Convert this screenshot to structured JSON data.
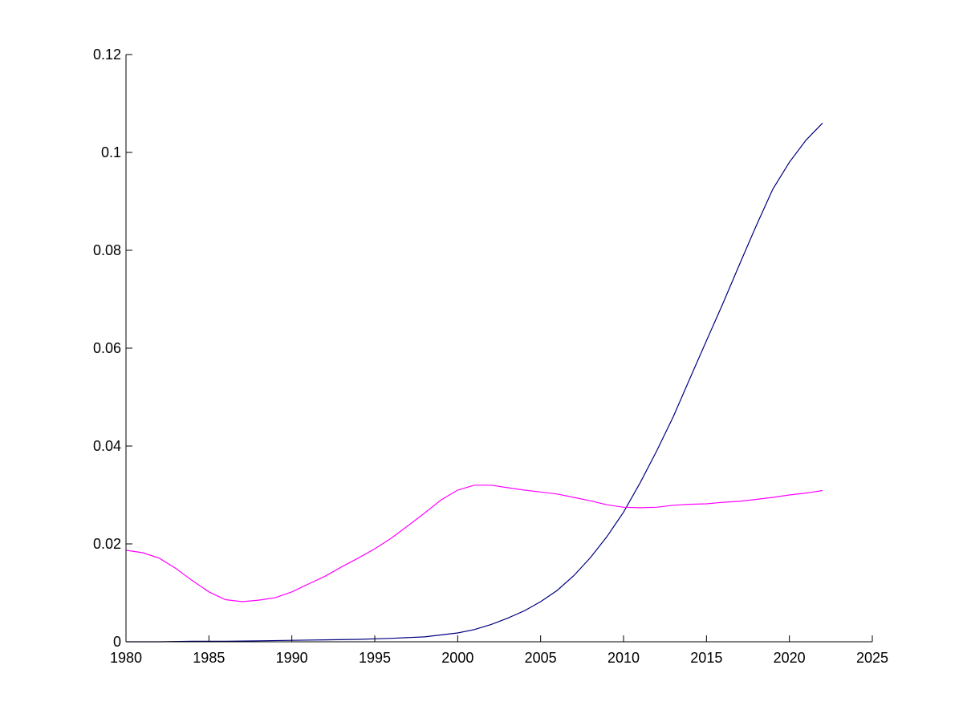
{
  "chart_data": {
    "type": "line",
    "title": "",
    "xlabel": "",
    "ylabel": "",
    "xlim": [
      1980,
      2025
    ],
    "ylim": [
      0,
      0.12
    ],
    "xticks": [
      1980,
      1985,
      1990,
      1995,
      2000,
      2005,
      2010,
      2015,
      2020,
      2025
    ],
    "xtick_labels": [
      "1980",
      "1985",
      "1990",
      "1995",
      "2000",
      "2005",
      "2010",
      "2015",
      "2020",
      "2025"
    ],
    "yticks": [
      0,
      0.02,
      0.04,
      0.06,
      0.08,
      0.1,
      0.12
    ],
    "ytick_labels": [
      "0",
      "0.02",
      "0.04",
      "0.06",
      "0.08",
      "0.1",
      "0.12"
    ],
    "grid": false,
    "legend": "none",
    "series": [
      {
        "color": "#00007f",
        "x": [
          1980,
          1982,
          1984,
          1986,
          1988,
          1990,
          1992,
          1994,
          1996,
          1998,
          2000,
          2001,
          2002,
          2003,
          2004,
          2005,
          2006,
          2007,
          2008,
          2009,
          2010,
          2011,
          2012,
          2013,
          2014,
          2015,
          2016,
          2017,
          2018,
          2019,
          2020,
          2021,
          2022
        ],
        "y": [
          0.0,
          0.0,
          0.0001,
          0.0001,
          0.0002,
          0.0003,
          0.0004,
          0.0005,
          0.0007,
          0.001,
          0.0018,
          0.0025,
          0.0035,
          0.0048,
          0.0063,
          0.0082,
          0.0105,
          0.0135,
          0.0172,
          0.0215,
          0.0265,
          0.0325,
          0.039,
          0.046,
          0.0538,
          0.0615,
          0.0692,
          0.0772,
          0.085,
          0.0925,
          0.098,
          0.1025,
          0.106
        ]
      },
      {
        "color": "#ff00ff",
        "x": [
          1980,
          1981,
          1982,
          1983,
          1984,
          1985,
          1986,
          1987,
          1988,
          1989,
          1990,
          1991,
          1992,
          1993,
          1994,
          1995,
          1996,
          1997,
          1998,
          1999,
          2000,
          2001,
          2002,
          2003,
          2004,
          2005,
          2006,
          2007,
          2008,
          2009,
          2010,
          2011,
          2012,
          2013,
          2014,
          2015,
          2016,
          2017,
          2018,
          2019,
          2020,
          2021,
          2022
        ],
        "y": [
          0.0187,
          0.0182,
          0.0171,
          0.015,
          0.0125,
          0.0102,
          0.0086,
          0.0082,
          0.0085,
          0.009,
          0.0102,
          0.0118,
          0.0134,
          0.0153,
          0.0171,
          0.019,
          0.0212,
          0.0237,
          0.0263,
          0.029,
          0.031,
          0.032,
          0.032,
          0.0315,
          0.031,
          0.0306,
          0.0302,
          0.0295,
          0.0288,
          0.028,
          0.0275,
          0.0274,
          0.0275,
          0.0279,
          0.0281,
          0.0282,
          0.0285,
          0.0287,
          0.0291,
          0.0295,
          0.03,
          0.0304,
          0.0309
        ]
      }
    ]
  }
}
